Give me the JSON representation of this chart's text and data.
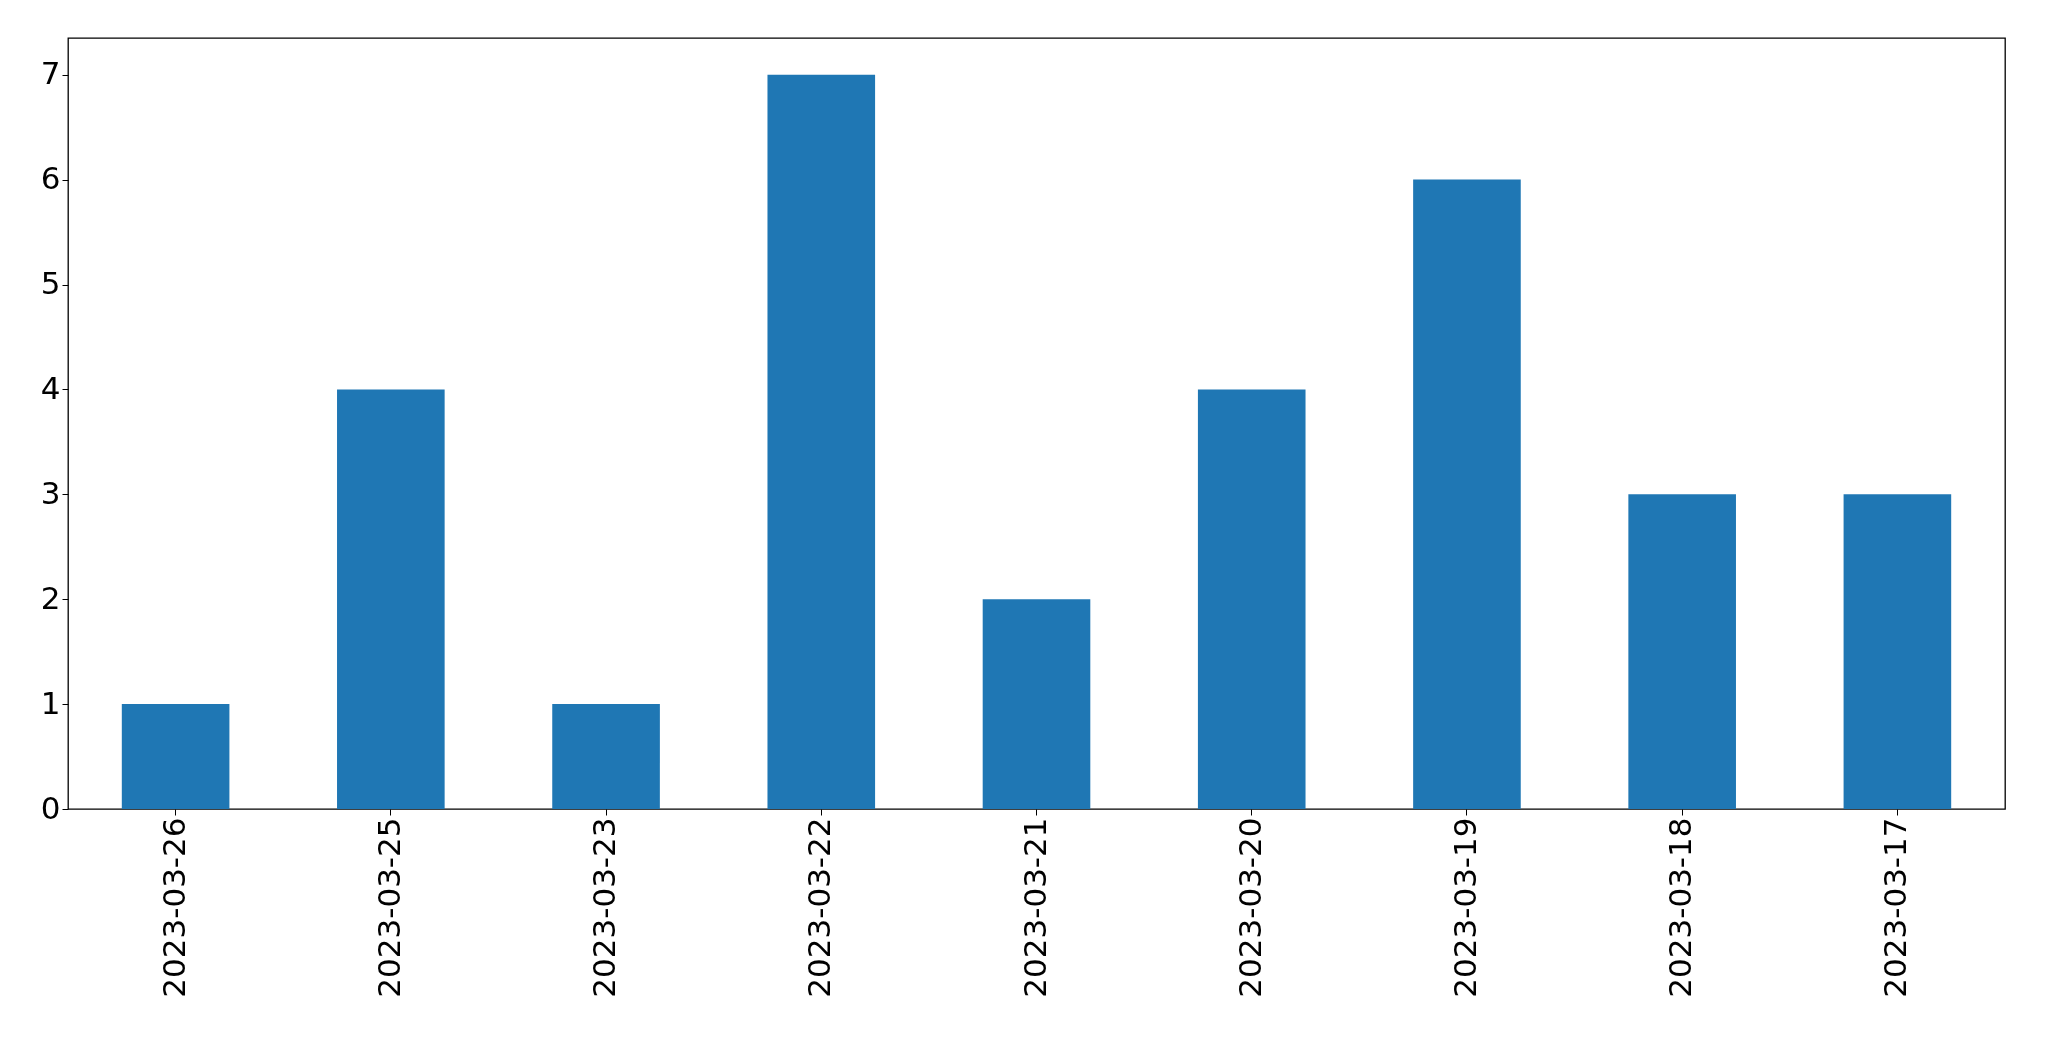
{
  "chart_data": {
    "type": "bar",
    "categories": [
      "2023-03-26",
      "2023-03-25",
      "2023-03-23",
      "2023-03-22",
      "2023-03-21",
      "2023-03-20",
      "2023-03-19",
      "2023-03-18",
      "2023-03-17"
    ],
    "values": [
      1,
      4,
      1,
      7,
      2,
      4,
      6,
      3,
      3
    ],
    "color": "#1f77b4",
    "ylim": [
      0,
      7.35
    ],
    "yticks": [
      0,
      1,
      2,
      3,
      4,
      5,
      6,
      7
    ],
    "grid": false
  }
}
